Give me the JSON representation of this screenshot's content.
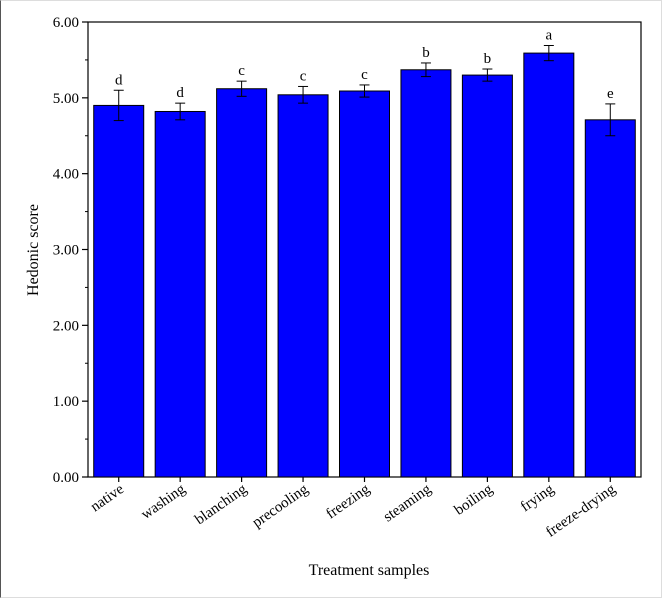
{
  "chart_data": {
    "type": "bar",
    "title": "",
    "xlabel": "Treatment samples",
    "ylabel": "Hedonic score",
    "ylim": [
      0,
      6
    ],
    "yticks": [
      "0.00",
      "1.00",
      "2.00",
      "3.00",
      "4.00",
      "5.00",
      "6.00"
    ],
    "categories": [
      "native",
      "washing",
      "blanching",
      "precooling",
      "freezing",
      "steaming",
      "boiling",
      "frying",
      "freeze-drying"
    ],
    "values": [
      4.9,
      4.82,
      5.12,
      5.04,
      5.09,
      5.37,
      5.3,
      5.59,
      4.71
    ],
    "errors": [
      0.2,
      0.11,
      0.1,
      0.11,
      0.08,
      0.09,
      0.08,
      0.1,
      0.21
    ],
    "significance": [
      "d",
      "d",
      "c",
      "c",
      "c",
      "b",
      "b",
      "a",
      "e"
    ],
    "bar_color": "#0000ff",
    "grid": false,
    "legend": "none"
  }
}
